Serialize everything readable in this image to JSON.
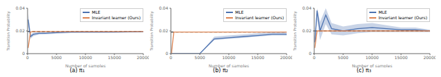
{
  "chart_data": [
    {
      "type": "line",
      "title": "(a) π₁",
      "x_label": "Number of samples",
      "y_label": "Transition Probability",
      "x": [
        100,
        500,
        1000,
        2000,
        3000,
        5000,
        7500,
        10000,
        12500,
        15000,
        17500,
        20000
      ],
      "xlim": [
        0,
        20000
      ],
      "xticks": [
        0,
        5000,
        10000,
        15000,
        20000
      ],
      "ylim": [
        0,
        0.04
      ],
      "yticks": [
        0,
        0.02,
        0.04
      ],
      "grid": false,
      "legend": "upper right",
      "true_value": 0.0195,
      "series": [
        {
          "name": "MLE",
          "color": "#4c72b0",
          "values": [
            0.03,
            0.015,
            0.017,
            0.018,
            0.018,
            0.0185,
            0.019,
            0.019,
            0.019,
            0.019,
            0.0192,
            0.0193
          ],
          "lower": [
            0.024,
            0.013,
            0.0155,
            0.0168,
            0.017,
            0.0176,
            0.0182,
            0.0183,
            0.0184,
            0.0185,
            0.0187,
            0.0188
          ],
          "upper": [
            0.036,
            0.017,
            0.0185,
            0.0192,
            0.019,
            0.0194,
            0.0198,
            0.0197,
            0.0196,
            0.0195,
            0.0197,
            0.0198
          ]
        },
        {
          "name": "Invariant learner (Ours)",
          "color": "#dd8452",
          "values": [
            0.005,
            0.019,
            0.0195,
            0.0195,
            0.0195,
            0.0195,
            0.0195,
            0.0195,
            0.0195,
            0.0195,
            0.0195,
            0.0195
          ]
        }
      ]
    },
    {
      "type": "line",
      "title": "(b) π₂",
      "x_label": "Number of samples",
      "y_label": "Transition Probability",
      "x": [
        100,
        500,
        1000,
        2000,
        3000,
        5000,
        7500,
        10000,
        12500,
        15000,
        17500,
        20000
      ],
      "xlim": [
        0,
        20000
      ],
      "xticks": [
        0,
        5000,
        10000,
        15000,
        20000
      ],
      "ylim": [
        0,
        0.04
      ],
      "yticks": [
        0,
        0.02,
        0.04
      ],
      "grid": false,
      "legend": "upper right",
      "true_value": 0.019,
      "series": [
        {
          "name": "MLE",
          "color": "#4c72b0",
          "values": [
            0,
            0,
            0,
            0,
            0,
            0,
            0.013,
            0.014,
            0.015,
            0.016,
            0.017,
            0.017
          ],
          "lower": [
            0,
            0,
            0,
            0,
            0,
            0,
            0.012,
            0.013,
            0.014,
            0.015,
            0.016,
            0.016
          ],
          "upper": [
            0,
            0,
            0,
            0,
            0,
            0,
            0.015,
            0.016,
            0.017,
            0.018,
            0.019,
            0.019
          ]
        },
        {
          "name": "Invariant learner (Ours)",
          "color": "#dd8452",
          "values": [
            0,
            0.019,
            0.019,
            0.019,
            0.019,
            0.019,
            0.019,
            0.019,
            0.019,
            0.019,
            0.019,
            0.019
          ]
        }
      ]
    },
    {
      "type": "line",
      "title": "(c) π₃",
      "x_label": "Number of samples",
      "y_label": "Transition Probability",
      "x": [
        100,
        500,
        1000,
        2000,
        3000,
        5000,
        7500,
        10000,
        12500,
        15000,
        17500,
        20000
      ],
      "xlim": [
        0,
        20000
      ],
      "xticks": [
        0,
        5000,
        10000,
        15000,
        20000
      ],
      "ylim": [
        0,
        0.04
      ],
      "yticks": [
        0,
        0.02,
        0.04
      ],
      "grid": false,
      "legend": "upper right",
      "true_value": 0.02,
      "series": [
        {
          "name": "MLE",
          "color": "#4c72b0",
          "values": [
            0.01,
            0.038,
            0.02,
            0.034,
            0.022,
            0.02,
            0.022,
            0.023,
            0.022,
            0.021,
            0.021,
            0.02
          ],
          "lower": [
            0.005,
            0.03,
            0.012,
            0.026,
            0.017,
            0.016,
            0.018,
            0.019,
            0.019,
            0.019,
            0.019,
            0.019
          ],
          "upper": [
            0.015,
            0.04,
            0.028,
            0.04,
            0.027,
            0.024,
            0.026,
            0.027,
            0.025,
            0.023,
            0.023,
            0.021
          ]
        },
        {
          "name": "Invariant learner (Ours)",
          "color": "#dd8452",
          "values": [
            0.005,
            0.02,
            0.02,
            0.02,
            0.02,
            0.02,
            0.02,
            0.02,
            0.02,
            0.02,
            0.02,
            0.02
          ]
        }
      ]
    }
  ]
}
